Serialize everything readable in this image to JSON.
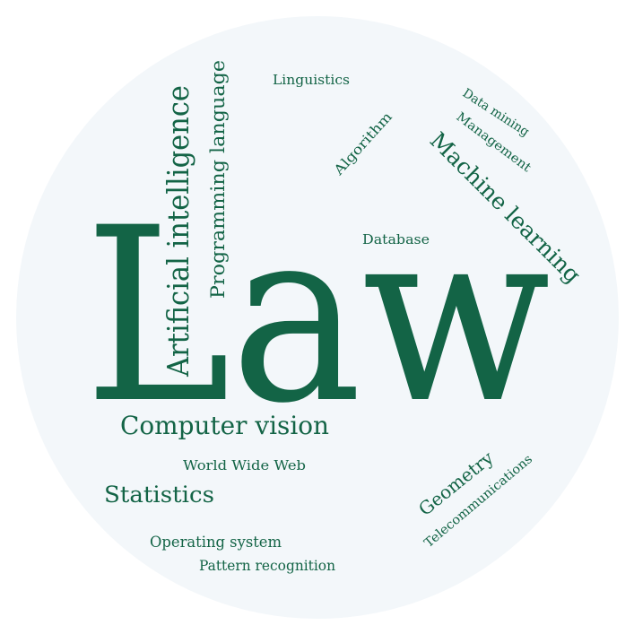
{
  "colors": {
    "background": "#ffffff",
    "circle_fill": "#f3f7fa",
    "word_color": "#136446"
  },
  "words": [
    "Law",
    "Artificial intelligence",
    "Programming language",
    "Linguistics",
    "Algorithm",
    "Data mining",
    "Management",
    "Machine learning",
    "Database",
    "Computer vision",
    "World Wide Web",
    "Statistics",
    "Geometry",
    "Telecommunications",
    "Operating system",
    "Pattern recognition"
  ]
}
